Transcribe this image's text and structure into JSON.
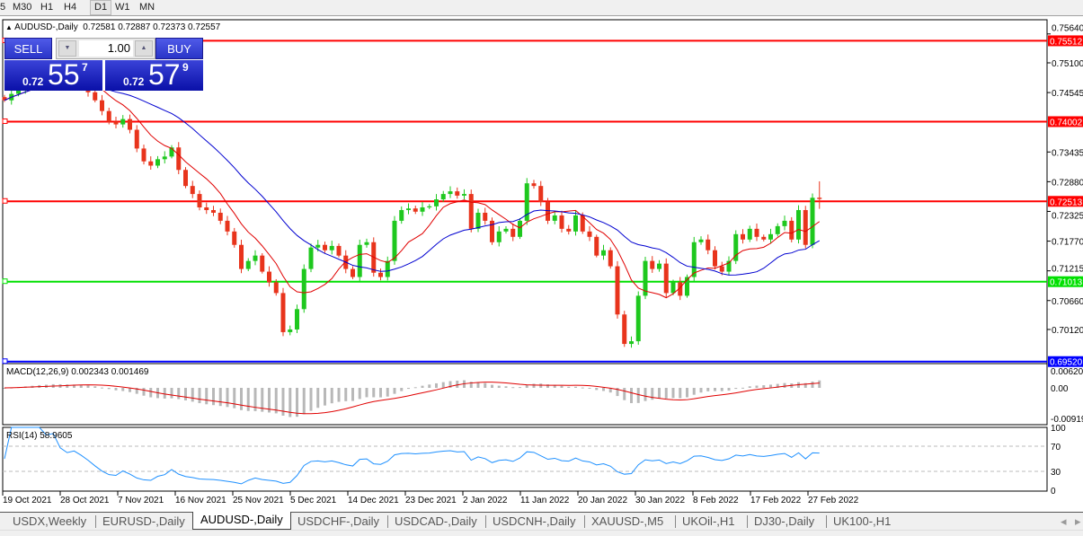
{
  "toolbar": {
    "timeframes": [
      "5",
      "M30",
      "H1",
      "H4",
      "D1",
      "W1",
      "MN"
    ],
    "active": "D1"
  },
  "header": {
    "symbol": "AUDUSD-,Daily",
    "ohlc": "0.72581 0.72887 0.72373 0.72557"
  },
  "trade_panel": {
    "sell_label": "SELL",
    "buy_label": "BUY",
    "lots": "1.00",
    "sell": {
      "prefix": "0.72",
      "big": "55",
      "pip": "7"
    },
    "buy": {
      "prefix": "0.72",
      "big": "57",
      "pip": "9"
    }
  },
  "colors": {
    "bull": "#1ec81e",
    "bear": "#e8341c",
    "ma_fast": "#e00000",
    "ma_slow": "#0000d0",
    "macd_hist": "#b8b8b8",
    "macd_signal": "#e00000",
    "rsi": "#1e90ff"
  },
  "chart_data": {
    "type": "candlestick",
    "price_ticks": [
      "0.75640",
      "0.75100",
      "0.74545",
      "0.73435",
      "0.72880",
      "0.72325",
      "0.71770",
      "0.71215",
      "0.70660",
      "0.70120"
    ],
    "levels": [
      {
        "value": "0.75512",
        "color": "#ff0000"
      },
      {
        "value": "0.74002",
        "color": "#ff0000"
      },
      {
        "value": "0.72513",
        "color": "#ff0000"
      },
      {
        "value": "0.71013",
        "color": "#00e000"
      },
      {
        "value": "0.69520",
        "color": "#0000ff"
      }
    ],
    "closes": [
      0.744,
      0.7452,
      0.746,
      0.747,
      0.7478,
      0.7485,
      0.748,
      0.749,
      0.7475,
      0.7468,
      0.7472,
      0.7465,
      0.7455,
      0.744,
      0.742,
      0.74,
      0.7395,
      0.7405,
      0.7385,
      0.735,
      0.7326,
      0.7318,
      0.733,
      0.7335,
      0.7352,
      0.731,
      0.728,
      0.7265,
      0.724,
      0.7235,
      0.723,
      0.7215,
      0.7195,
      0.717,
      0.7125,
      0.714,
      0.715,
      0.712,
      0.71,
      0.708,
      0.7007,
      0.7012,
      0.705,
      0.7125,
      0.7165,
      0.717,
      0.716,
      0.7168,
      0.715,
      0.7125,
      0.711,
      0.717,
      0.7175,
      0.7118,
      0.711,
      0.714,
      0.7215,
      0.7235,
      0.7238,
      0.7232,
      0.724,
      0.7242,
      0.7255,
      0.7265,
      0.727,
      0.7262,
      0.7265,
      0.72,
      0.723,
      0.7215,
      0.7175,
      0.7195,
      0.72,
      0.7185,
      0.7215,
      0.7285,
      0.728,
      0.725,
      0.7215,
      0.7225,
      0.72,
      0.7195,
      0.7225,
      0.7195,
      0.7185,
      0.715,
      0.716,
      0.713,
      0.704,
      0.6985,
      0.699,
      0.7075,
      0.714,
      0.7125,
      0.7135,
      0.708,
      0.71,
      0.7075,
      0.711,
      0.7175,
      0.718,
      0.716,
      0.713,
      0.712,
      0.714,
      0.719,
      0.718,
      0.72,
      0.7185,
      0.718,
      0.719,
      0.7205,
      0.7215,
      0.718,
      0.7235,
      0.717,
      0.7258,
      0.72557
    ],
    "last_bar": {
      "open": 0.72581,
      "high": 0.72887,
      "low": 0.72373,
      "close": 0.72557
    },
    "date_labels": [
      "19 Oct 2021",
      "28 Oct 2021",
      "7 Nov 2021",
      "16 Nov 2021",
      "25 Nov 2021",
      "5 Dec 2021",
      "14 Dec 2021",
      "23 Dec 2021",
      "2 Jan 2022",
      "11 Jan 2022",
      "20 Jan 2022",
      "30 Jan 2022",
      "8 Feb 2022",
      "17 Feb 2022",
      "27 Feb 2022"
    ]
  },
  "macd": {
    "label": "MACD(12,26,9) 0.002343 0.001469",
    "ticks": [
      "0.006201",
      "0.00",
      "-0.00919"
    ]
  },
  "rsi": {
    "label": "RSI(14) 58.9605",
    "ticks": [
      "100",
      "70",
      "30",
      "0"
    ]
  },
  "tabs": [
    "USDX,Weekly",
    "EURUSD-,Daily",
    "AUDUSD-,Daily",
    "USDCHF-,Daily",
    "USDCAD-,Daily",
    "USDCNH-,Daily",
    "XAUUSD-,M5",
    "UKOil-,H1",
    "DJ30-,Daily",
    "UK100-,H1"
  ],
  "active_tab": "AUDUSD-,Daily"
}
